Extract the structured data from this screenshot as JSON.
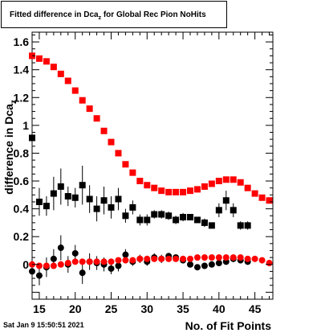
{
  "chart_data": {
    "type": "scatter",
    "title": {
      "main": "Fitted difference in Dca",
      "sub": "z",
      "tail": " for Global Rec Pion NoHits"
    },
    "xlabel": "No. of Fit Points",
    "ylabel": {
      "main": "difference in Dca",
      "sub": "z"
    },
    "xlim": [
      14,
      47.5
    ],
    "ylim": [
      -0.25,
      1.67
    ],
    "x_ticks": [
      15,
      20,
      25,
      30,
      35,
      40,
      45
    ],
    "y_ticks": [
      0,
      0.2,
      0.4,
      0.6,
      0.8,
      1,
      1.2,
      1.4,
      1.6
    ],
    "y_tick_labels": [
      "0",
      "0.2",
      "0.4",
      "0.6",
      "0.8",
      "1",
      "1.2",
      "1.4",
      "1.6"
    ],
    "colors": {
      "red": "#ff0000",
      "black": "#000000"
    },
    "series": [
      {
        "marker": "square",
        "color": "#ff0000",
        "x": [
          14,
          15,
          16,
          17,
          18,
          19,
          20,
          21,
          22,
          23,
          24,
          25,
          26,
          27,
          28,
          29,
          30,
          31,
          32,
          33,
          34,
          35,
          36,
          37,
          38,
          39,
          40,
          41,
          42,
          43,
          44,
          45,
          46,
          47
        ],
        "y": [
          1.5,
          1.48,
          1.46,
          1.42,
          1.37,
          1.32,
          1.25,
          1.18,
          1.12,
          1.05,
          0.96,
          0.88,
          0.8,
          0.72,
          0.66,
          0.6,
          0.57,
          0.55,
          0.53,
          0.52,
          0.52,
          0.52,
          0.53,
          0.54,
          0.56,
          0.58,
          0.6,
          0.61,
          0.61,
          0.59,
          0.55,
          0.51,
          0.48,
          0.46
        ]
      },
      {
        "marker": "square",
        "color": "#000000",
        "x": [
          14,
          15,
          16,
          17,
          18,
          19,
          20,
          21,
          22,
          23,
          24,
          25,
          26,
          27,
          28,
          29,
          30,
          31,
          32,
          33,
          34,
          35,
          36,
          37,
          38,
          39,
          40,
          41,
          42,
          43,
          44
        ],
        "y": [
          0.91,
          0.45,
          0.42,
          0.51,
          0.56,
          0.49,
          0.48,
          0.57,
          0.47,
          0.4,
          0.46,
          0.41,
          0.47,
          0.35,
          0.41,
          0.32,
          0.32,
          0.36,
          0.36,
          0.35,
          0.32,
          0.34,
          0.34,
          0.32,
          0.3,
          0.28,
          0.39,
          0.46,
          0.39,
          0.28,
          0.28
        ],
        "yerr": [
          0.06,
          0.1,
          0.07,
          0.12,
          0.13,
          0.07,
          0.07,
          0.14,
          0.1,
          0.09,
          0.1,
          0.08,
          0.08,
          0.05,
          0.05,
          0.04,
          0.04,
          0.03,
          0.03,
          0.03,
          0.03,
          0.03,
          0.02,
          0.02,
          0.03,
          0.02,
          0.05,
          0.07,
          0.05,
          0.03,
          0.03
        ]
      },
      {
        "marker": "circle",
        "color": "#000000",
        "x": [
          14,
          15,
          16,
          17,
          18,
          19,
          20,
          21,
          22,
          23,
          24,
          25,
          26,
          27,
          28,
          29,
          30,
          31,
          32,
          33,
          34,
          35,
          36,
          37,
          38,
          39,
          40,
          41,
          42,
          43,
          44
        ],
        "y": [
          -0.05,
          -0.08,
          -0.02,
          0.04,
          0.12,
          0.0,
          0.08,
          -0.06,
          0.02,
          0.01,
          0.0,
          -0.03,
          -0.01,
          0.07,
          0.02,
          0.04,
          0.02,
          0.05,
          0.04,
          0.06,
          0.05,
          0.03,
          0.0,
          -0.02,
          -0.01,
          0.0,
          0.01,
          0.02,
          0.04,
          0.03,
          0.02
        ],
        "yerr": [
          0.06,
          0.07,
          0.07,
          0.07,
          0.09,
          0.06,
          0.06,
          0.08,
          0.06,
          0.05,
          0.05,
          0.04,
          0.04,
          0.04,
          0.03,
          0.03,
          0.03,
          0.03,
          0.03,
          0.02,
          0.02,
          0.02,
          0.02,
          0.02,
          0.02,
          0.02,
          0.02,
          0.02,
          0.02,
          0.02,
          0.02
        ]
      },
      {
        "marker": "circle",
        "color": "#ff0000",
        "x": [
          14,
          15,
          16,
          17,
          18,
          19,
          20,
          21,
          22,
          23,
          24,
          25,
          26,
          27,
          28,
          29,
          30,
          31,
          32,
          33,
          34,
          35,
          36,
          37,
          38,
          39,
          40,
          41,
          42,
          43,
          44,
          45,
          46,
          47
        ],
        "y": [
          0.0,
          -0.01,
          -0.01,
          -0.01,
          0.0,
          0.01,
          0.02,
          0.02,
          0.02,
          0.02,
          0.02,
          0.02,
          0.03,
          0.03,
          0.03,
          0.04,
          0.04,
          0.04,
          0.04,
          0.04,
          0.04,
          0.04,
          0.04,
          0.05,
          0.05,
          0.05,
          0.05,
          0.05,
          0.05,
          0.05,
          0.04,
          0.04,
          0.03,
          0.01
        ],
        "yerr": [
          0.01,
          0.01,
          0.01,
          0.01,
          0.01,
          0.01,
          0.01,
          0.01,
          0.01,
          0.01,
          0.01,
          0.01,
          0.01,
          0.01,
          0.01,
          0.01,
          0.01,
          0.01,
          0.01,
          0.01,
          0.01,
          0.01,
          0.01,
          0.01,
          0.01,
          0.01,
          0.01,
          0.01,
          0.01,
          0.01,
          0.01,
          0.01,
          0.01,
          0.01
        ]
      }
    ]
  },
  "footer": {
    "timestamp": "Sat Jan  9 15:50:51 2021"
  }
}
